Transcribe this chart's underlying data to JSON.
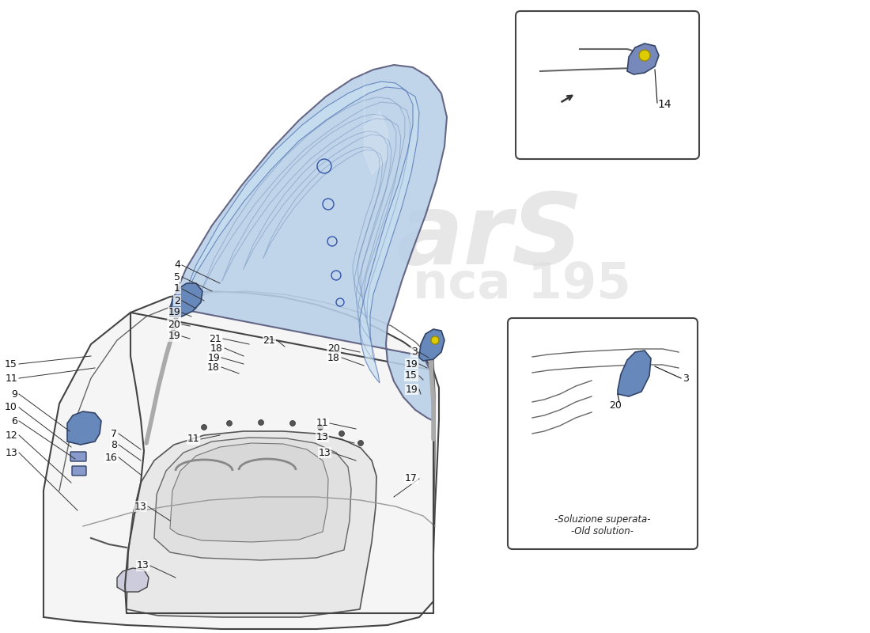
{
  "bg_color": "#ffffff",
  "hood_fill": "#b8d0e8",
  "hood_edge": "#555577",
  "body_fill": "#f5f5f5",
  "body_edge": "#444444",
  "engine_fill": "#e8e8e8",
  "engine_edge": "#555555",
  "blue_part": "#6688bb",
  "label_fs": 9,
  "detail_box2_text": "-Soluzione superata-\n-Old solution-",
  "watermark_color": "#dddddd",
  "lc": "#111111",
  "main_labels": [
    [
      "4",
      228,
      445
    ],
    [
      "5",
      228,
      458
    ],
    [
      "1",
      228,
      472
    ],
    [
      "2",
      228,
      487
    ],
    [
      "19",
      228,
      502
    ],
    [
      "20",
      228,
      516
    ],
    [
      "19",
      228,
      530
    ],
    [
      "15",
      22,
      513
    ],
    [
      "11",
      22,
      530
    ],
    [
      "9",
      22,
      548
    ],
    [
      "10",
      22,
      563
    ],
    [
      "6",
      22,
      578
    ],
    [
      "12",
      22,
      595
    ],
    [
      "13",
      22,
      618
    ],
    [
      "7",
      162,
      555
    ],
    [
      "8",
      162,
      572
    ],
    [
      "16",
      162,
      592
    ],
    [
      "18",
      290,
      488
    ],
    [
      "19",
      298,
      503
    ],
    [
      "21",
      298,
      472
    ],
    [
      "18",
      285,
      518
    ],
    [
      "21",
      345,
      470
    ],
    [
      "18",
      430,
      490
    ],
    [
      "20",
      430,
      472
    ],
    [
      "3",
      520,
      478
    ],
    [
      "19",
      520,
      495
    ],
    [
      "15",
      520,
      512
    ],
    [
      "19",
      520,
      530
    ],
    [
      "11",
      420,
      552
    ],
    [
      "13",
      420,
      568
    ],
    [
      "13",
      420,
      590
    ],
    [
      "13",
      185,
      638
    ],
    [
      "13",
      195,
      720
    ],
    [
      "11",
      255,
      568
    ],
    [
      "17",
      520,
      608
    ]
  ],
  "label_arrows": [
    [
      "4",
      228,
      445,
      278,
      420
    ],
    [
      "5",
      228,
      458,
      272,
      432
    ],
    [
      "1",
      228,
      472,
      268,
      448
    ],
    [
      "2",
      228,
      487,
      258,
      470
    ],
    [
      "19",
      228,
      502,
      248,
      492
    ],
    [
      "20",
      228,
      516,
      248,
      505
    ],
    [
      "19",
      228,
      530,
      242,
      520
    ],
    [
      "15",
      22,
      513,
      100,
      498
    ],
    [
      "11",
      22,
      530,
      105,
      522
    ],
    [
      "9",
      22,
      548,
      88,
      548
    ],
    [
      "10",
      22,
      563,
      90,
      563
    ],
    [
      "6",
      22,
      578,
      94,
      578
    ],
    [
      "12",
      22,
      595,
      88,
      608
    ],
    [
      "13",
      22,
      618,
      95,
      640
    ],
    [
      "7",
      162,
      555,
      192,
      572
    ],
    [
      "8",
      162,
      572,
      192,
      588
    ],
    [
      "16",
      162,
      592,
      192,
      608
    ],
    [
      "18",
      290,
      488,
      310,
      475
    ],
    [
      "19",
      298,
      503,
      310,
      490
    ],
    [
      "21",
      298,
      472,
      315,
      460
    ],
    [
      "18",
      285,
      518,
      310,
      510
    ],
    [
      "21",
      345,
      470,
      358,
      458
    ],
    [
      "18",
      430,
      490,
      455,
      482
    ],
    [
      "20",
      430,
      472,
      455,
      465
    ],
    [
      "3",
      520,
      478,
      538,
      468
    ],
    [
      "19",
      520,
      495,
      538,
      488
    ],
    [
      "15",
      520,
      512,
      535,
      505
    ],
    [
      "19",
      520,
      530,
      535,
      522
    ],
    [
      "11",
      420,
      552,
      445,
      558
    ],
    [
      "13",
      420,
      568,
      445,
      572
    ],
    [
      "13",
      420,
      590,
      445,
      595
    ],
    [
      "13",
      185,
      638,
      220,
      660
    ],
    [
      "13",
      195,
      720,
      230,
      735
    ],
    [
      "11",
      255,
      568,
      275,
      562
    ],
    [
      "17",
      520,
      608,
      490,
      628
    ]
  ]
}
